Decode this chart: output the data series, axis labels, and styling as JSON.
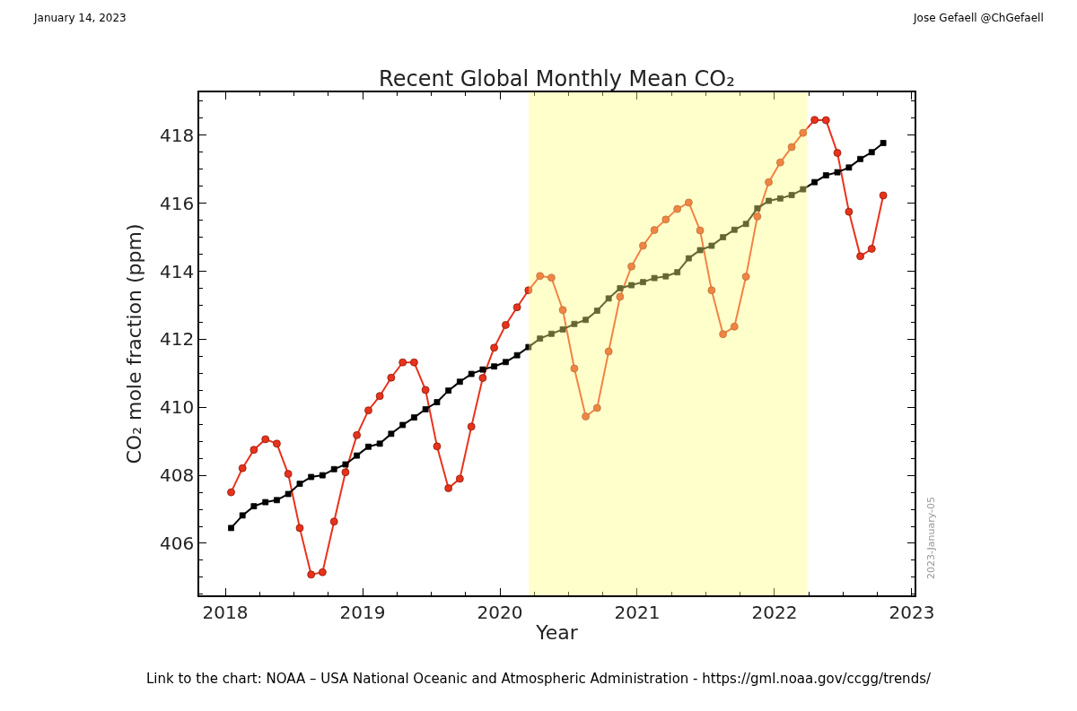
{
  "chart_data": {
    "type": "line",
    "title": "Recent Global Monthly Mean CO₂",
    "xlabel": "Year",
    "ylabel": "CO₂ mole fraction (ppm)",
    "x": [
      2018.042,
      2018.125,
      2018.208,
      2018.292,
      2018.375,
      2018.458,
      2018.542,
      2018.625,
      2018.708,
      2018.792,
      2018.875,
      2018.958,
      2019.042,
      2019.125,
      2019.208,
      2019.292,
      2019.375,
      2019.458,
      2019.542,
      2019.625,
      2019.708,
      2019.792,
      2019.875,
      2019.958,
      2020.042,
      2020.125,
      2020.208,
      2020.292,
      2020.375,
      2020.458,
      2020.542,
      2020.625,
      2020.708,
      2020.792,
      2020.875,
      2020.958,
      2021.042,
      2021.125,
      2021.208,
      2021.292,
      2021.375,
      2021.458,
      2021.542,
      2021.625,
      2021.708,
      2021.792,
      2021.875,
      2021.958,
      2022.042,
      2022.125,
      2022.208,
      2022.292,
      2022.375,
      2022.458,
      2022.542,
      2022.625,
      2022.708,
      2022.792
    ],
    "series": [
      {
        "color": "#e8321c",
        "marker": "circle",
        "values": [
          407.5,
          408.21,
          408.75,
          409.06,
          408.93,
          408.04,
          406.45,
          405.08,
          405.15,
          406.64,
          408.09,
          409.18,
          409.91,
          410.33,
          410.87,
          411.32,
          411.32,
          410.51,
          408.85,
          407.62,
          407.9,
          409.43,
          410.86,
          411.75,
          412.42,
          412.94,
          413.44,
          413.86,
          413.81,
          412.86,
          411.14,
          409.73,
          409.98,
          411.64,
          413.25,
          414.14,
          414.75,
          415.21,
          415.52,
          415.83,
          416.02,
          415.2,
          413.44,
          412.15,
          412.37,
          413.84,
          415.61,
          416.62,
          417.2,
          417.65,
          418.07,
          418.45,
          418.44,
          417.48,
          415.75,
          414.44,
          414.66,
          416.23
        ]
      },
      {
        "color": "#000000",
        "marker": "square",
        "values": [
          406.45,
          406.82,
          407.09,
          407.21,
          407.27,
          407.45,
          407.75,
          407.95,
          408.0,
          408.18,
          408.32,
          408.58,
          408.84,
          408.93,
          409.22,
          409.48,
          409.7,
          409.94,
          410.15,
          410.49,
          410.75,
          410.98,
          411.11,
          411.2,
          411.33,
          411.53,
          411.77,
          412.02,
          412.16,
          412.29,
          412.45,
          412.57,
          412.84,
          413.2,
          413.5,
          413.59,
          413.68,
          413.8,
          413.85,
          413.97,
          414.38,
          414.62,
          414.75,
          415.0,
          415.22,
          415.39,
          415.85,
          416.07,
          416.14,
          416.24,
          416.41,
          416.62,
          416.82,
          416.91,
          417.05,
          417.3,
          417.5,
          417.77
        ]
      }
    ],
    "xlim": [
      2017.81,
      2023.02
    ],
    "xticks": [
      2018,
      2019,
      2020,
      2021,
      2022,
      2023
    ],
    "ylim": [
      404.47,
      419.26
    ],
    "yticks": [
      406,
      408,
      410,
      412,
      414,
      416,
      418
    ],
    "bands": [
      {
        "axis": "x",
        "from": 2020.21,
        "to": 2022.24,
        "color": "#ffff80"
      }
    ],
    "line_style": "solid",
    "annotations": [
      "January 14, 2023",
      "Jose Gefaell @ChGefaell",
      "2023-January-05",
      "Link to the chart: NOAA – USA National Oceanic and Atmospheric Administration - https://gml.noaa.gov/ccgg/trends/"
    ]
  }
}
